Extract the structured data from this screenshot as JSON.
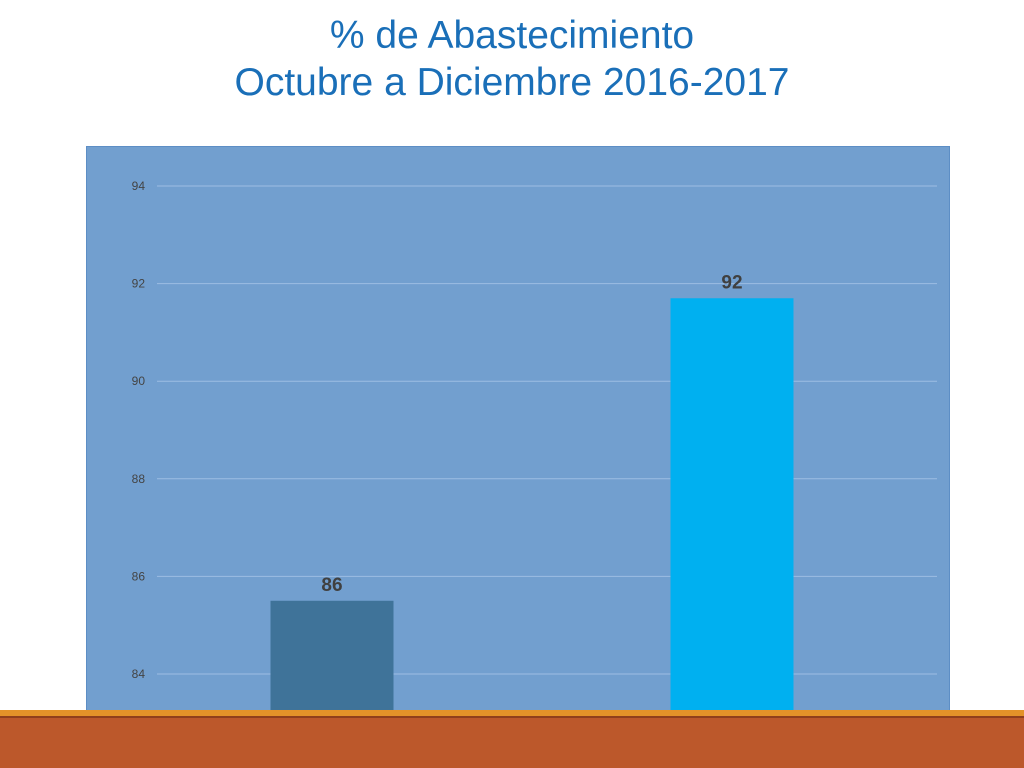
{
  "title": {
    "line1": "% de Abastecimiento",
    "line2": "Octubre a Diciembre 2016-2017"
  },
  "colors": {
    "title": "#1a6fb8",
    "panel": "#729fcf",
    "footer": "#bc582b",
    "footer_stripe": "#e39229"
  },
  "chart_data": {
    "type": "bar",
    "categories": [
      "",
      ""
    ],
    "values": [
      85.5,
      91.7
    ],
    "data_labels": [
      "86",
      "92"
    ],
    "bar_colors": [
      "#3f7399",
      "#00b0f0"
    ],
    "ylim": [
      83.2,
      94.8
    ],
    "yticks": [
      84,
      86,
      88,
      90,
      92,
      94
    ],
    "ytick_labels": [
      "84",
      "86",
      "88",
      "90",
      "92",
      "94"
    ],
    "xlabel": "",
    "ylabel": "",
    "grid": true,
    "legend": "none"
  }
}
